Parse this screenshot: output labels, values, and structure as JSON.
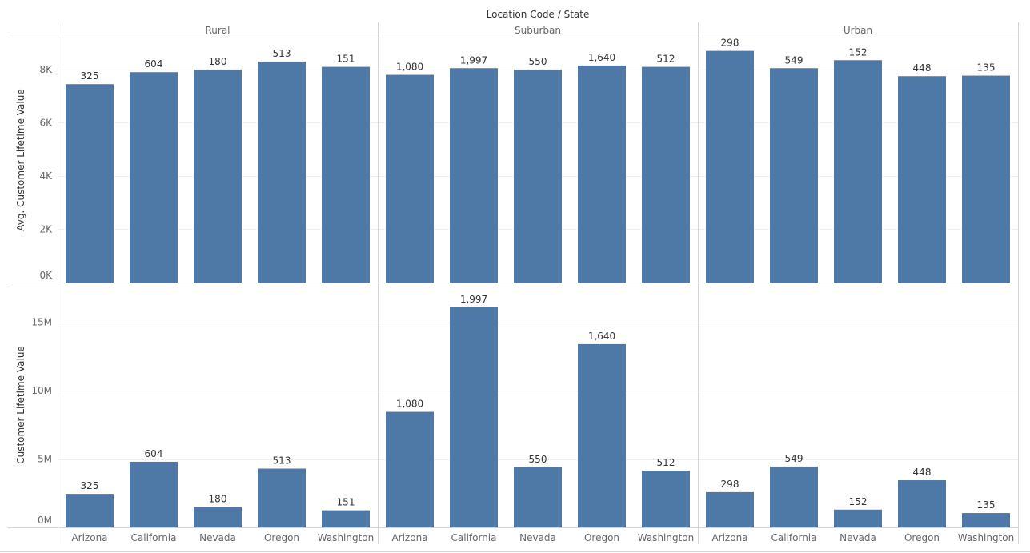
{
  "chart_data": {
    "type": "bar",
    "title": "Location Code / State",
    "panes": [
      "Rural",
      "Suburban",
      "Urban"
    ],
    "categories": [
      "Arizona",
      "California",
      "Nevada",
      "Oregon",
      "Washington"
    ],
    "rows": [
      {
        "ylabel": "Avg. Customer Lifetime Value",
        "ylim": [
          0,
          9200
        ],
        "ticks": [
          0,
          2000,
          4000,
          6000,
          8000
        ],
        "tick_labels": [
          "0K",
          "2K",
          "4K",
          "6K",
          "8K"
        ],
        "values": [
          [
            7450,
            7900,
            8000,
            8300,
            8100
          ],
          [
            7800,
            8050,
            8000,
            8150,
            8100
          ],
          [
            8700,
            8050,
            8350,
            7750,
            7770
          ]
        ],
        "labels": [
          [
            "325",
            "604",
            "180",
            "513",
            "151"
          ],
          [
            "1,080",
            "1,997",
            "550",
            "1,640",
            "512"
          ],
          [
            "298",
            "549",
            "152",
            "448",
            "135"
          ]
        ]
      },
      {
        "ylabel": "Customer Lifetime Value",
        "ylim": [
          0,
          17900000
        ],
        "ticks": [
          0,
          5000000,
          10000000,
          15000000
        ],
        "tick_labels": [
          "0M",
          "5M",
          "10M",
          "15M"
        ],
        "values": [
          [
            2450000,
            4800000,
            1500000,
            4300000,
            1250000
          ],
          [
            8450000,
            16100000,
            4400000,
            13400000,
            4150000
          ],
          [
            2580000,
            4450000,
            1300000,
            3450000,
            1050000
          ]
        ],
        "labels": [
          [
            "325",
            "604",
            "180",
            "513",
            "151"
          ],
          [
            "1,080",
            "1,997",
            "550",
            "1,640",
            "512"
          ],
          [
            "298",
            "549",
            "152",
            "448",
            "135"
          ]
        ]
      }
    ],
    "colors": {
      "bar": "#4e79a7"
    },
    "grid": true,
    "legend": "none"
  }
}
